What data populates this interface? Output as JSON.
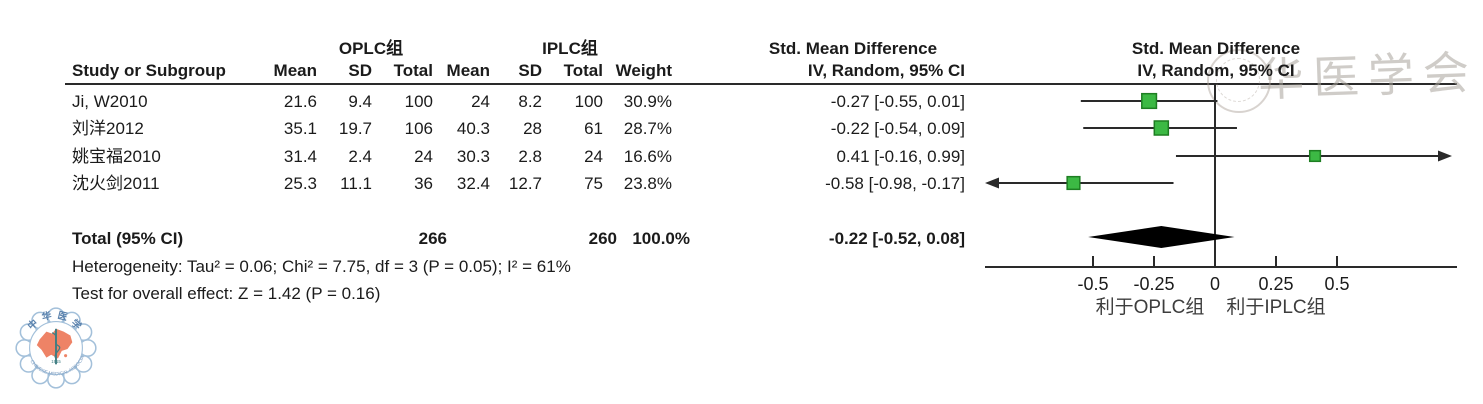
{
  "table": {
    "group_headers": {
      "oplc": "OPLC组",
      "iplc": "IPLC组",
      "smd": "Std. Mean Difference"
    },
    "column_headers": {
      "study": "Study or Subgroup",
      "mean": "Mean",
      "sd": "SD",
      "total": "Total",
      "weight": "Weight",
      "ci": "IV, Random, 95% CI"
    },
    "rows": [
      {
        "study": "Ji, W2010",
        "mean1": "21.6",
        "sd1": "9.4",
        "total1": "100",
        "mean2": "24",
        "sd2": "8.2",
        "total2": "100",
        "weight": "30.9%",
        "ci": "-0.27 [-0.55, 0.01]"
      },
      {
        "study": "刘洋2012",
        "mean1": "35.1",
        "sd1": "19.7",
        "total1": "106",
        "mean2": "40.3",
        "sd2": "28",
        "total2": "61",
        "weight": "28.7%",
        "ci": "-0.22 [-0.54, 0.09]"
      },
      {
        "study": "姚宝福2010",
        "mean1": "31.4",
        "sd1": "2.4",
        "total1": "24",
        "mean2": "30.3",
        "sd2": "2.8",
        "total2": "24",
        "weight": "16.6%",
        "ci": "0.41 [-0.16, 0.99]"
      },
      {
        "study": "沈火剑2011",
        "mean1": "25.3",
        "sd1": "11.1",
        "total1": "36",
        "mean2": "32.4",
        "sd2": "12.7",
        "total2": "75",
        "weight": "23.8%",
        "ci": "-0.58 [-0.98, -0.17]"
      }
    ],
    "total_row": {
      "label": "Total (95% CI)",
      "total1": "266",
      "total2": "260",
      "weight": "100.0%",
      "ci": "-0.22 [-0.52, 0.08]"
    },
    "heterogeneity": "Heterogeneity: Tau² = 0.06; Chi² = 7.75, df = 3 (P = 0.05); I² = 61%",
    "overall_effect": "Test for overall effect: Z = 1.42 (P = 0.16)"
  },
  "chart_data": {
    "type": "forest",
    "title": "Std. Mean Difference",
    "subtitle": "IV, Random, 95% CI",
    "x_axis": {
      "ticks": [
        -0.5,
        -0.25,
        0,
        0.25,
        0.5
      ],
      "tick_labels": [
        "-0.5",
        "-0.25",
        "0",
        "0.25",
        "0.5"
      ],
      "plot_min": -0.93,
      "plot_max": 0.95
    },
    "studies": [
      {
        "name": "Ji, W2010",
        "smd": -0.27,
        "ci_low": -0.55,
        "ci_high": 0.01,
        "weight_pct": 30.9
      },
      {
        "name": "刘洋2012",
        "smd": -0.22,
        "ci_low": -0.54,
        "ci_high": 0.09,
        "weight_pct": 28.7
      },
      {
        "name": "姚宝福2010",
        "smd": 0.41,
        "ci_low": -0.16,
        "ci_high": 0.99,
        "weight_pct": 16.6
      },
      {
        "name": "沈火剑2011",
        "smd": -0.58,
        "ci_low": -0.98,
        "ci_high": -0.17,
        "weight_pct": 23.8
      }
    ],
    "total": {
      "smd": -0.22,
      "ci_low": -0.52,
      "ci_high": 0.08
    },
    "favours_left": "利于OPLC组",
    "favours_right": "利于IPLC组",
    "colors": {
      "square_fill": "#3cb944",
      "square_border": "#1e7e22",
      "line": "#2a2a2a",
      "diamond": "#000000"
    }
  },
  "watermark": {
    "calligraphy": "华医学会"
  },
  "logo": {
    "top_text": "中华医学",
    "bottom_text": "CHINESE MEDICAL ASSOCIATION",
    "year": "1915"
  }
}
